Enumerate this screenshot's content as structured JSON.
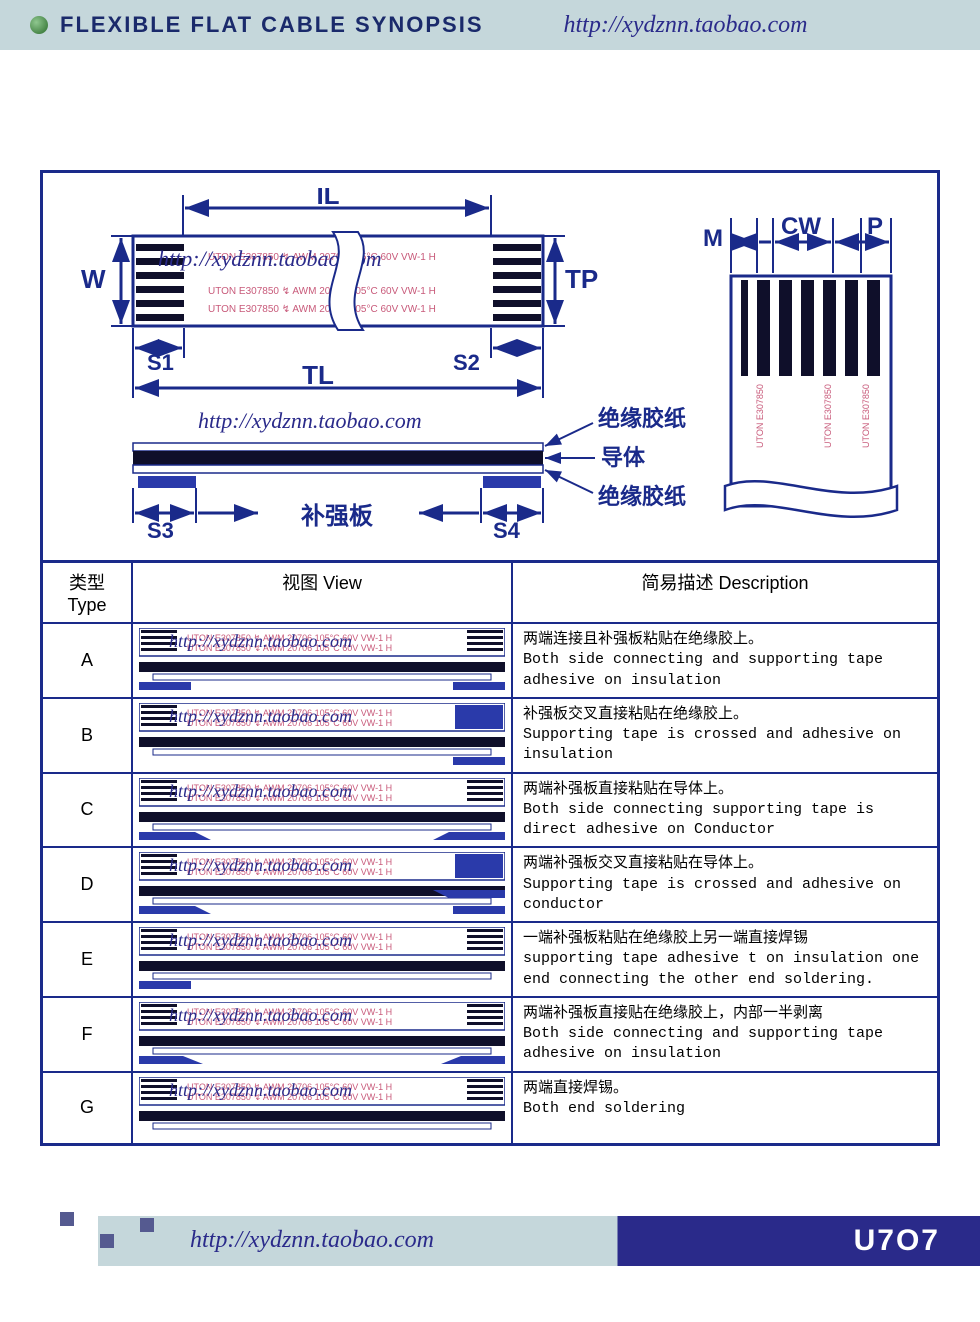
{
  "header": {
    "title": "FLEXIBLE FLAT CABLE SYNOPSIS",
    "url": "http://xydznn.taobao.com"
  },
  "colors": {
    "border": "#1a2a8a",
    "header_bg": "#c5d7db",
    "header_text": "#1a2a6b",
    "watermark": "#2a2a8a",
    "dim_text": "#1a2a8a",
    "cable_stripe": "#0f0f2a",
    "support_blue": "#2a3aaa",
    "markings": "#c85a7a",
    "background": "#ffffff"
  },
  "top_diagram": {
    "labels": {
      "IL": "IL",
      "W": "W",
      "TP": "TP",
      "S1": "S1",
      "S2": "S2",
      "TL": "TL",
      "S3": "S3",
      "S4": "S4",
      "reinforce": "补强板",
      "insul_tape": "绝缘胶纸",
      "conductor": "导体",
      "M": "M",
      "CW": "CW",
      "P": "P"
    },
    "marking_text": "UTON E307850 ↯ AWM 20706  105°C 60V VW-1 H",
    "watermark1": "http://xydznn.taobao.com",
    "watermark2": "http://xydznn.taobao.com"
  },
  "table": {
    "headers": {
      "type": "类型 Type",
      "view": "视图 View",
      "desc": "简易描述 Description"
    },
    "rows": [
      {
        "type": "A",
        "desc_cn": "两端连接且补强板粘贴在绝缘胶上。",
        "desc_en": "Both side connecting and supporting tape adhesive on insulation",
        "watermark": "http://xydznn.taobao.com",
        "view": {
          "stripe_left": true,
          "stripe_right": true,
          "sup_left": "under_out",
          "sup_right": "under_out",
          "cross": false
        }
      },
      {
        "type": "B",
        "desc_cn": "补强板交叉直接粘贴在绝缘胶上。",
        "desc_en": "Supporting tape is crossed and adhesive on insulation",
        "watermark": "http://xydznn.taobao.com",
        "view": {
          "stripe_left": true,
          "stripe_right": false,
          "sup_left": "top_block",
          "sup_right": "under_out",
          "cross": true
        }
      },
      {
        "type": "C",
        "desc_cn": "两端补强板直接粘贴在导体上。",
        "desc_en": "Both side connecting supporting tape is direct adhesive on Conductor",
        "watermark": "http://xydznn.taobao.com",
        "view": {
          "stripe_left": true,
          "stripe_right": true,
          "sup_left": "wrap",
          "sup_right": "wrap",
          "cross": false
        }
      },
      {
        "type": "D",
        "desc_cn": "两端补强板交叉直接粘贴在导体上。",
        "desc_en": "Supporting tape is crossed and adhesive on conductor",
        "watermark": "http://xydznn.taobao.com",
        "view": {
          "stripe_left": true,
          "stripe_right": false,
          "sup_left": "wrap",
          "sup_right": "wrap_bottom",
          "cross": true
        }
      },
      {
        "type": "E",
        "desc_cn": "一端补强板粘贴在绝缘胶上另一端直接焊锡",
        "desc_en": "supporting tape adhesive t on insulation one end connecting the other end soldering.",
        "watermark": "http://xydznn.taobao.com",
        "view": {
          "stripe_left": true,
          "stripe_right": true,
          "sup_left": "under_out",
          "sup_right": "none",
          "cross": false
        }
      },
      {
        "type": "F",
        "desc_cn": "两端补强板直接贴在绝缘胶上，内部一半剥离",
        "desc_en": "Both side connecting and supporting tape adhesive on insulation",
        "watermark": "http://xydznn.taobao.com",
        "view": {
          "stripe_left": true,
          "stripe_right": true,
          "sup_left": "slant_out",
          "sup_right": "slant_out",
          "cross": false
        }
      },
      {
        "type": "G",
        "desc_cn": "两端直接焊锡。",
        "desc_en": "Both end soldering",
        "watermark": "http://xydznn.taobao.com",
        "view": {
          "stripe_left": true,
          "stripe_right": true,
          "sup_left": "none",
          "sup_right": "none",
          "cross": false
        }
      }
    ]
  },
  "footer": {
    "url": "http://xydznn.taobao.com",
    "logo": "U7O7"
  },
  "typography": {
    "header_fontsize": 22,
    "url_fontsize": 24,
    "table_header_fontsize": 18,
    "desc_fontsize": 15,
    "dim_fontsize": 24,
    "wm_fontsize": 22
  }
}
